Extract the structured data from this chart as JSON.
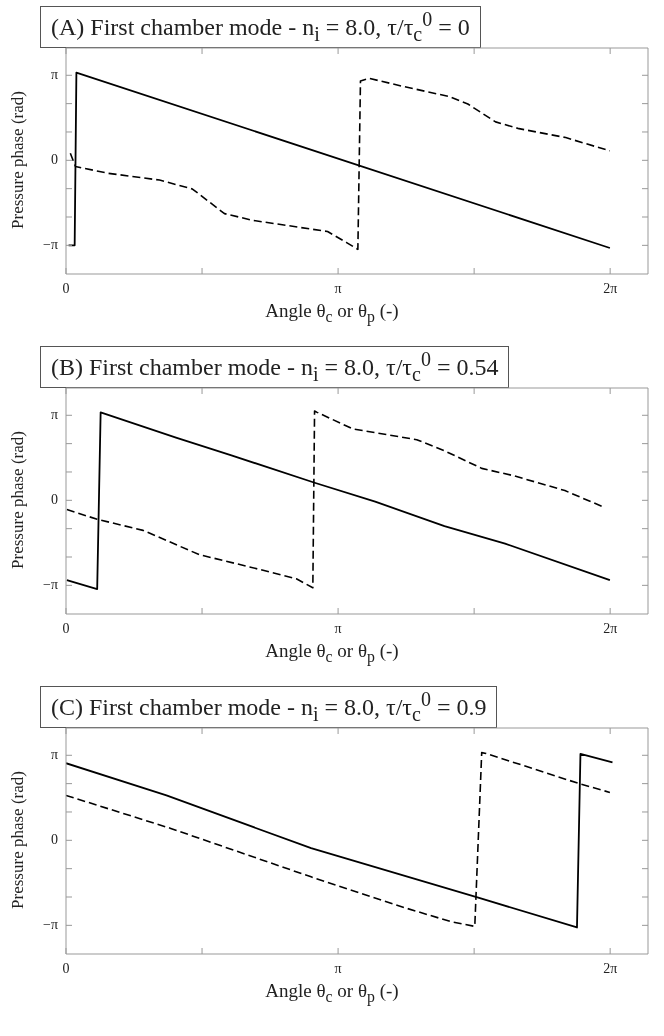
{
  "chart_data": [
    {
      "type": "line",
      "title": "(A) First chamber mode - n$_{i}$ = 8.0,  τ/τ$_{c}$$^{0}$ = 0",
      "xlabel": "Angle θ$_{c}$ or θ$_{p}$ (-)",
      "ylabel": "Pressure phase (rad)",
      "grid": false,
      "legend": false,
      "marker": "none",
      "xlim": [
        0,
        6.72
      ],
      "ylim": [
        -4.2,
        4.15
      ],
      "xticks": [
        {
          "value": 0,
          "label": "0"
        },
        {
          "value": 1.5708,
          "label": null
        },
        {
          "value": 3.1416,
          "label": "π"
        },
        {
          "value": 4.7124,
          "label": null
        },
        {
          "value": 6.2832,
          "label": "2π"
        }
      ],
      "yticks": [
        {
          "value": -3.1416,
          "label": "−π"
        },
        {
          "value": -2.0944,
          "label": null
        },
        {
          "value": -1.0472,
          "label": null
        },
        {
          "value": 0,
          "label": "0"
        },
        {
          "value": 1.0472,
          "label": null
        },
        {
          "value": 2.0944,
          "label": null
        },
        {
          "value": 3.1416,
          "label": "π"
        }
      ],
      "series": [
        {
          "color": "#000000",
          "line_style": "solid",
          "x": [
            0.03,
            0.1,
            0.12,
            6.28
          ],
          "values": [
            -3.14,
            -3.14,
            3.24,
            -3.24
          ]
        },
        {
          "color": "#000000",
          "line_style": "dashed",
          "x": [
            0.05,
            0.11,
            0.49,
            1.08,
            1.46,
            1.83,
            2.16,
            3.02,
            3.24,
            3.37,
            3.4,
            3.5,
            3.88,
            4.42,
            4.64,
            4.96,
            5.23,
            5.77,
            6.28
          ],
          "values": [
            0.26,
            -0.23,
            -0.48,
            -0.73,
            -1.06,
            -1.97,
            -2.22,
            -2.63,
            -3.04,
            -3.29,
            2.93,
            3.03,
            2.74,
            2.36,
            2.08,
            1.42,
            1.17,
            0.84,
            0.35
          ]
        }
      ]
    },
    {
      "type": "line",
      "title": "(B) First chamber mode - n$_{i}$ = 8.0,  τ/τ$_{c}$$^{0}$ = 0.54",
      "xlabel": "Angle θ$_{c}$ or θ$_{p}$ (-)",
      "ylabel": "Pressure phase (rad)",
      "grid": false,
      "legend": false,
      "marker": "none",
      "xlim": [
        0,
        6.72
      ],
      "ylim": [
        -4.2,
        4.15
      ],
      "xticks": [
        {
          "value": 0,
          "label": "0"
        },
        {
          "value": 1.5708,
          "label": null
        },
        {
          "value": 3.1416,
          "label": "π"
        },
        {
          "value": 4.7124,
          "label": null
        },
        {
          "value": 6.2832,
          "label": "2π"
        }
      ],
      "yticks": [
        {
          "value": -3.1416,
          "label": "−π"
        },
        {
          "value": -2.0944,
          "label": null
        },
        {
          "value": -1.0472,
          "label": null
        },
        {
          "value": 0,
          "label": "0"
        },
        {
          "value": 1.0472,
          "label": null
        },
        {
          "value": 2.0944,
          "label": null
        },
        {
          "value": 3.1416,
          "label": "π"
        }
      ],
      "series": [
        {
          "color": "#000000",
          "line_style": "solid",
          "x": [
            0.01,
            0.36,
            0.4,
            1.27,
            1.91,
            2.88,
            3.57,
            4.37,
            5.07,
            6.28
          ],
          "values": [
            -2.95,
            -3.28,
            3.25,
            2.32,
            1.66,
            0.64,
            -0.05,
            -0.95,
            -1.6,
            -2.95
          ]
        },
        {
          "color": "#000000",
          "line_style": "dashed",
          "x": [
            0.01,
            0.36,
            0.89,
            1.54,
            2.12,
            2.66,
            2.85,
            2.87,
            2.9,
            3.31,
            4.05,
            4.37,
            4.8,
            5.18,
            5.76,
            6.2
          ],
          "values": [
            -0.34,
            -0.7,
            -1.11,
            -2.01,
            -2.46,
            -2.9,
            -3.23,
            3.3,
            3.25,
            2.64,
            2.24,
            1.83,
            1.18,
            0.9,
            0.36,
            -0.24
          ]
        }
      ]
    },
    {
      "type": "line",
      "title": "(C) First chamber mode - n$_{i}$ = 8.0,  τ/τ$_{c}$$^{0}$ = 0.9",
      "xlabel": "Angle θ$_{c}$ or θ$_{p}$ (-)",
      "ylabel": "Pressure phase (rad)",
      "grid": false,
      "legend": false,
      "marker": "none",
      "xlim": [
        0,
        6.72
      ],
      "ylim": [
        -4.2,
        4.15
      ],
      "xticks": [
        {
          "value": 0,
          "label": "0"
        },
        {
          "value": 1.5708,
          "label": null
        },
        {
          "value": 3.1416,
          "label": "π"
        },
        {
          "value": 4.7124,
          "label": null
        },
        {
          "value": 6.2832,
          "label": "2π"
        }
      ],
      "yticks": [
        {
          "value": -3.1416,
          "label": "−π"
        },
        {
          "value": -2.0944,
          "label": null
        },
        {
          "value": -1.0472,
          "label": null
        },
        {
          "value": 0,
          "label": "0"
        },
        {
          "value": 1.0472,
          "label": null
        },
        {
          "value": 2.0944,
          "label": null
        },
        {
          "value": 3.1416,
          "label": "π"
        }
      ],
      "series": [
        {
          "color": "#000000",
          "line_style": "solid",
          "x": [
            0,
            1.16,
            2.83,
            4.77,
            5.9,
            5.94,
            6.31
          ],
          "values": [
            2.85,
            1.66,
            -0.29,
            -2.13,
            -3.22,
            3.19,
            2.88
          ]
        },
        {
          "color": "#000000",
          "line_style": "dashed",
          "x": [
            0,
            1.21,
            2.83,
            3.91,
            4.45,
            4.72,
            4.8,
            4.85,
            5.95,
            6.28
          ],
          "values": [
            1.66,
            0.44,
            -1.35,
            -2.49,
            -3.01,
            -3.18,
            3.24,
            3.21,
            2.07,
            1.77
          ]
        }
      ]
    }
  ]
}
